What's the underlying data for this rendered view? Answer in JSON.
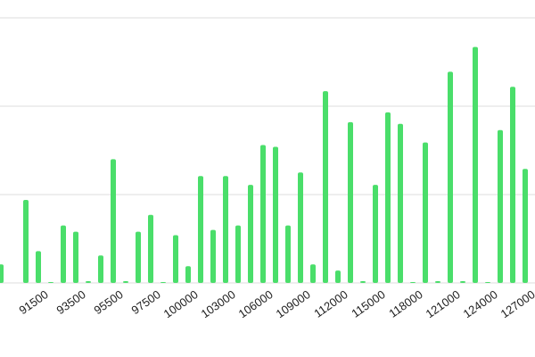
{
  "chart_data": {
    "type": "bar",
    "categories": [
      null,
      null,
      null,
      "91500",
      null,
      null,
      "93500",
      null,
      null,
      "95500",
      null,
      null,
      "97500",
      null,
      null,
      "100000",
      null,
      null,
      "103000",
      null,
      null,
      "106000",
      null,
      null,
      "109000",
      null,
      null,
      "112000",
      null,
      null,
      "115000",
      null,
      null,
      "118000",
      null,
      null,
      "121000",
      null,
      null,
      "124000",
      null,
      null,
      "127000",
      null
    ],
    "values": [
      0.21,
      0,
      0.94,
      0.36,
      0.01,
      0.65,
      0.58,
      0.02,
      0.31,
      1.4,
      0.02,
      0.58,
      0.77,
      0.01,
      0.54,
      0.19,
      1.21,
      0.6,
      1.21,
      0.65,
      1.11,
      1.56,
      1.54,
      0.65,
      1.25,
      0.21,
      2.17,
      0.14,
      1.82,
      0.02,
      1.11,
      1.93,
      1.8,
      0.01,
      1.59,
      0.02,
      2.39,
      0.02,
      2.67,
      0.01,
      1.73,
      2.22,
      1.29,
      0.04
    ],
    "color": "#4ade6a",
    "ylim": [
      0,
      3
    ],
    "yticks": [
      0,
      1,
      2,
      3
    ],
    "grid": true
  }
}
